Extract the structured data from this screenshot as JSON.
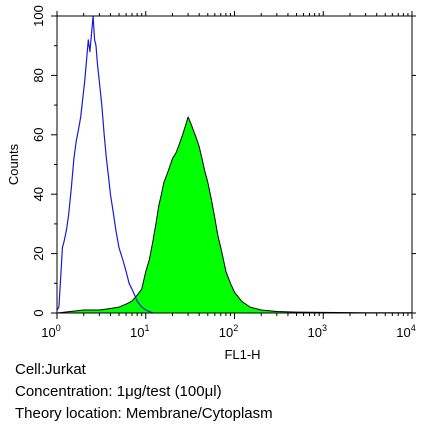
{
  "chart_data": {
    "type": "area",
    "xlabel": "FL1-H",
    "ylabel": "Counts",
    "x_scale": "log",
    "xlim": [
      1,
      10000
    ],
    "ylim": [
      0,
      100
    ],
    "x_ticks": [
      {
        "base": "10",
        "exp": "0"
      },
      {
        "base": "10",
        "exp": "1"
      },
      {
        "base": "10",
        "exp": "2"
      },
      {
        "base": "10",
        "exp": "3"
      },
      {
        "base": "10",
        "exp": "4"
      }
    ],
    "y_ticks": [
      "0",
      "20",
      "40",
      "60",
      "80",
      "100"
    ],
    "grid": false,
    "series": [
      {
        "style": "outline",
        "color": "#1a1ad6",
        "points": [
          [
            1.0,
            1
          ],
          [
            1.05,
            2
          ],
          [
            1.1,
            12
          ],
          [
            1.15,
            22
          ],
          [
            1.2,
            24
          ],
          [
            1.28,
            28
          ],
          [
            1.35,
            33
          ],
          [
            1.45,
            42
          ],
          [
            1.55,
            52
          ],
          [
            1.65,
            58
          ],
          [
            1.75,
            62
          ],
          [
            1.85,
            66
          ],
          [
            1.95,
            72
          ],
          [
            2.05,
            78
          ],
          [
            2.15,
            85
          ],
          [
            2.25,
            92
          ],
          [
            2.35,
            88
          ],
          [
            2.45,
            94
          ],
          [
            2.55,
            100
          ],
          [
            2.65,
            92
          ],
          [
            2.75,
            90
          ],
          [
            2.85,
            84
          ],
          [
            3.0,
            78
          ],
          [
            3.2,
            70
          ],
          [
            3.4,
            60
          ],
          [
            3.6,
            52
          ],
          [
            3.8,
            46
          ],
          [
            4.0,
            40
          ],
          [
            4.3,
            34
          ],
          [
            4.6,
            28
          ],
          [
            5.0,
            22
          ],
          [
            5.5,
            18
          ],
          [
            6.0,
            14
          ],
          [
            6.5,
            10
          ],
          [
            7.0,
            8
          ],
          [
            7.5,
            6
          ],
          [
            8.0,
            4
          ],
          [
            9.0,
            2
          ],
          [
            10.0,
            1
          ],
          [
            12.0,
            0
          ]
        ]
      },
      {
        "style": "filled",
        "color": "#00ff00",
        "points": [
          [
            1.0,
            0
          ],
          [
            2.0,
            1
          ],
          [
            3.0,
            1
          ],
          [
            4.0,
            1.5
          ],
          [
            5.0,
            2
          ],
          [
            6.0,
            3
          ],
          [
            7.0,
            4
          ],
          [
            8.0,
            6
          ],
          [
            9.0,
            8
          ],
          [
            10.0,
            14
          ],
          [
            11.0,
            18
          ],
          [
            12.0,
            24
          ],
          [
            13.0,
            30
          ],
          [
            14.0,
            36
          ],
          [
            15.0,
            40
          ],
          [
            16.0,
            44
          ],
          [
            17.0,
            46
          ],
          [
            18.0,
            48
          ],
          [
            20.0,
            52
          ],
          [
            22.0,
            54
          ],
          [
            24.0,
            57
          ],
          [
            26.0,
            60
          ],
          [
            28.0,
            63
          ],
          [
            30.0,
            66
          ],
          [
            32.0,
            64
          ],
          [
            34.0,
            62
          ],
          [
            36.0,
            60
          ],
          [
            38.0,
            58
          ],
          [
            40.0,
            56
          ],
          [
            43.0,
            52
          ],
          [
            46.0,
            48
          ],
          [
            50.0,
            44
          ],
          [
            55.0,
            38
          ],
          [
            60.0,
            32
          ],
          [
            65.0,
            26
          ],
          [
            70.0,
            22
          ],
          [
            75.0,
            18
          ],
          [
            80.0,
            14
          ],
          [
            90.0,
            10
          ],
          [
            100.0,
            7
          ],
          [
            120.0,
            4
          ],
          [
            150.0,
            2
          ],
          [
            200.0,
            1
          ],
          [
            300.0,
            0.5
          ],
          [
            500.0,
            0.3
          ],
          [
            1000.0,
            0.2
          ],
          [
            3000.0,
            0.1
          ],
          [
            10000.0,
            0.1
          ]
        ]
      }
    ]
  },
  "caption": {
    "cell": "Cell:Jurkat",
    "concentration": "Concentration: 1μg/test (100μl)",
    "location": "Theory location: Membrane/Cytoplasm"
  }
}
